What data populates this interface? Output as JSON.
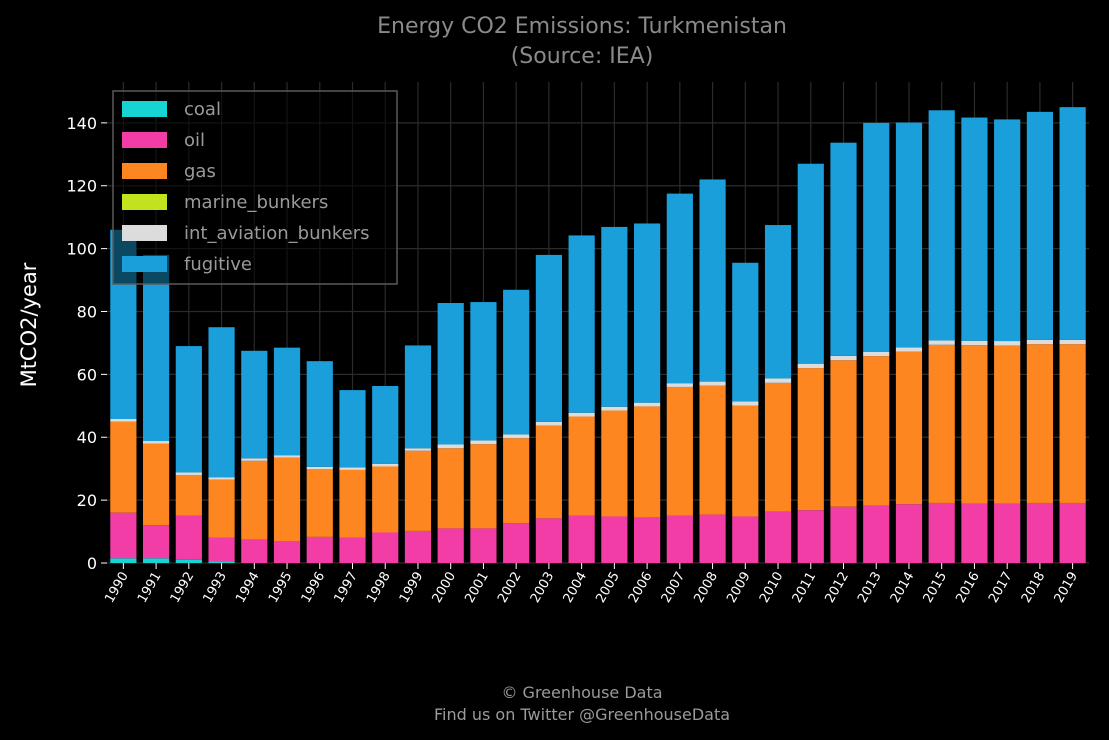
{
  "chart_data": {
    "type": "bar",
    "stacked": true,
    "title": "Energy CO2 Emissions: Turkmenistan",
    "subtitle": "(Source: IEA)",
    "xlabel": "",
    "ylabel": "MtCO2/year",
    "ylim": [
      0,
      153
    ],
    "yticks": [
      0,
      20,
      40,
      60,
      80,
      100,
      120,
      140
    ],
    "grid": true,
    "legend_position": "top-left",
    "categories": [
      "1990",
      "1991",
      "1992",
      "1993",
      "1994",
      "1995",
      "1996",
      "1997",
      "1998",
      "1999",
      "2000",
      "2001",
      "2002",
      "2003",
      "2004",
      "2005",
      "2006",
      "2007",
      "2008",
      "2009",
      "2010",
      "2011",
      "2012",
      "2013",
      "2014",
      "2015",
      "2016",
      "2017",
      "2018",
      "2019"
    ],
    "series": [
      {
        "name": "coal",
        "color": "#17d4d4",
        "values": [
          1.5,
          1.5,
          1.0,
          0.5,
          0,
          0,
          0,
          0,
          0,
          0,
          0,
          0,
          0,
          0,
          0,
          0,
          0,
          0,
          0,
          0,
          0,
          0,
          0,
          0,
          0,
          0,
          0,
          0,
          0,
          0
        ]
      },
      {
        "name": "oil",
        "color": "#f23ca6",
        "values": [
          14.5,
          10.5,
          14,
          7.5,
          7.5,
          7,
          8.3,
          8.1,
          9.7,
          10.2,
          11,
          11,
          12.7,
          14.2,
          15.1,
          14.8,
          14.5,
          15.1,
          15.4,
          14.8,
          16.3,
          16.8,
          17.9,
          18.2,
          18.7,
          19.1,
          18.9,
          18.9,
          19.1,
          19.1
        ]
      },
      {
        "name": "gas",
        "color": "#fd8620",
        "values": [
          29,
          26,
          13,
          18.5,
          25,
          26.5,
          21.5,
          21.5,
          21,
          25.5,
          25.5,
          26.8,
          27,
          29.5,
          31.5,
          33.7,
          35.3,
          40.9,
          41,
          35.3,
          41,
          45.2,
          46.6,
          47.6,
          48.5,
          50.3,
          50.4,
          50.3,
          50.5,
          50.5
        ]
      },
      {
        "name": "marine_bunkers",
        "color": "#c3e21e",
        "values": [
          0,
          0,
          0,
          0,
          0,
          0,
          0,
          0,
          0,
          0,
          0,
          0,
          0,
          0,
          0,
          0,
          0,
          0,
          0,
          0,
          0,
          0,
          0,
          0,
          0,
          0,
          0,
          0,
          0,
          0
        ]
      },
      {
        "name": "int_aviation_bunkers",
        "color": "#dcdcdc",
        "values": [
          0.8,
          0.8,
          0.8,
          0.8,
          0.8,
          0.8,
          0.8,
          0.8,
          0.8,
          0.8,
          1.2,
          1.2,
          1.2,
          1.2,
          1.2,
          1.2,
          1.2,
          1.2,
          1.3,
          1.3,
          1.4,
          1.4,
          1.4,
          1.4,
          1.4,
          1.4,
          1.4,
          1.4,
          1.4,
          1.4
        ]
      },
      {
        "name": "fugitive",
        "color": "#1a9fda",
        "values": [
          60.2,
          59.2,
          40.2,
          47.7,
          34.2,
          34.2,
          33.6,
          24.6,
          24.8,
          32.7,
          45,
          44,
          46,
          53.1,
          56.4,
          57.2,
          57,
          60.3,
          64.3,
          44.1,
          48.8,
          63.6,
          67.8,
          72.8,
          71.5,
          73.2,
          71,
          70.5,
          72.5,
          74
        ]
      }
    ]
  },
  "footer": {
    "line1": "© Greenhouse Data",
    "line2": "Find us on Twitter @GreenhouseData"
  }
}
